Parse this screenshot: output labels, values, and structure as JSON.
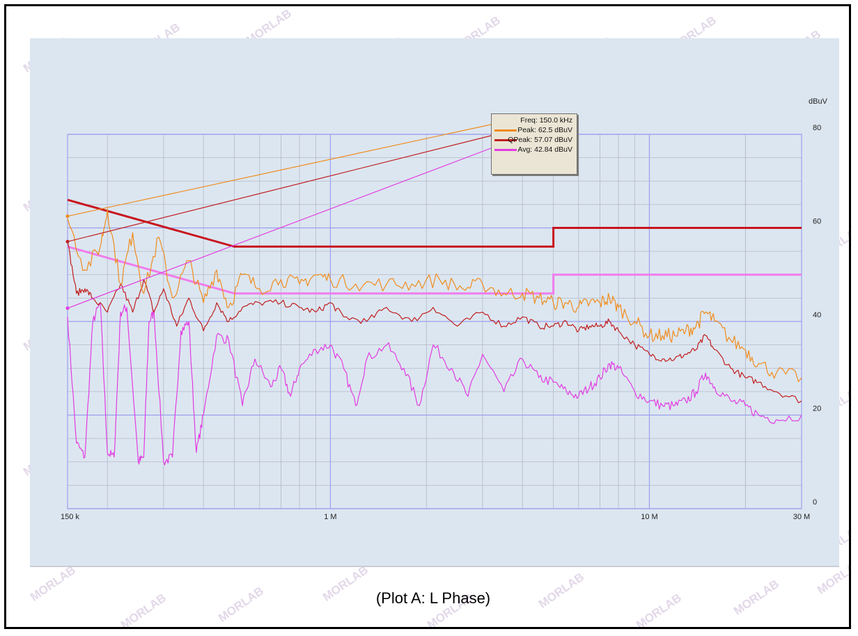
{
  "caption": "(Plot A: L Phase)",
  "watermark": "MORLAB",
  "colors": {
    "peak": "#f08c1e",
    "qpeak": "#c01e1e",
    "avg": "#e23ce2",
    "limit_qpeak": "#c8141e",
    "limit_avg": "#f07cec",
    "grid_major": "#9aa0ee",
    "grid_minor": "#b4b8c8",
    "plot_bg": "#dce6f0"
  },
  "legend": {
    "freq": "Freq: 150.0 kHz",
    "items": [
      {
        "text": "Peak: 62.5 dBuV",
        "color": "#f08c1e"
      },
      {
        "text": "QPeak: 57.07 dBuV",
        "color": "#c01e1e"
      },
      {
        "text": "Avg: 42.84 dBuV",
        "color": "#e23ce2"
      }
    ]
  },
  "chart_data": {
    "type": "line",
    "x_scale": "log",
    "xlim_mhz": [
      0.15,
      30
    ],
    "ylim": [
      0,
      80
    ],
    "ylabel": "dBuV",
    "x_ticks": [
      {
        "value": 0.15,
        "label": "150 k"
      },
      {
        "value": 1,
        "label": "1 M"
      },
      {
        "value": 10,
        "label": "10 M"
      },
      {
        "value": 30,
        "label": "30 M"
      }
    ],
    "y_ticks": [
      {
        "value": 0,
        "label": "0"
      },
      {
        "value": 20,
        "label": "20"
      },
      {
        "value": 40,
        "label": "40"
      },
      {
        "value": 60,
        "label": "60"
      },
      {
        "value": 80,
        "label": "80"
      }
    ],
    "legend_position": "top-right",
    "limits": [
      {
        "name": "QPeak limit",
        "points": [
          [
            0.15,
            66
          ],
          [
            0.5,
            56
          ],
          [
            5,
            56
          ],
          [
            5,
            60
          ],
          [
            30,
            60
          ]
        ]
      },
      {
        "name": "Avg limit",
        "points": [
          [
            0.15,
            56
          ],
          [
            0.5,
            46
          ],
          [
            5,
            46
          ],
          [
            5,
            50
          ],
          [
            30,
            50
          ]
        ]
      }
    ],
    "series": [
      {
        "key": "peak",
        "points": [
          [
            0.15,
            62
          ],
          [
            0.17,
            51
          ],
          [
            0.19,
            56
          ],
          [
            0.2,
            64
          ],
          [
            0.22,
            48
          ],
          [
            0.24,
            59
          ],
          [
            0.26,
            46
          ],
          [
            0.29,
            58
          ],
          [
            0.32,
            45
          ],
          [
            0.36,
            53
          ],
          [
            0.4,
            44
          ],
          [
            0.44,
            51
          ],
          [
            0.48,
            43
          ],
          [
            0.53,
            50
          ],
          [
            0.6,
            47
          ],
          [
            0.7,
            49
          ],
          [
            0.8,
            48
          ],
          [
            0.9,
            50
          ],
          [
            1.0,
            49
          ],
          [
            1.2,
            48
          ],
          [
            1.5,
            48
          ],
          [
            1.8,
            48
          ],
          [
            2.2,
            49
          ],
          [
            2.6,
            47
          ],
          [
            3.0,
            48
          ],
          [
            3.5,
            46
          ],
          [
            4.0,
            46
          ],
          [
            4.5,
            45
          ],
          [
            5.0,
            44
          ],
          [
            5.5,
            44
          ],
          [
            6.0,
            43
          ],
          [
            6.5,
            44
          ],
          [
            7.0,
            44
          ],
          [
            7.5,
            45
          ],
          [
            8.0,
            43
          ],
          [
            9.0,
            40
          ],
          [
            10.0,
            37
          ],
          [
            11.0,
            37
          ],
          [
            12.0,
            37
          ],
          [
            13.0,
            38
          ],
          [
            14.0,
            39
          ],
          [
            15.0,
            42
          ],
          [
            16.0,
            40
          ],
          [
            18.0,
            36
          ],
          [
            20.0,
            34
          ],
          [
            22.0,
            31
          ],
          [
            25.0,
            29
          ],
          [
            30.0,
            28
          ]
        ]
      },
      {
        "key": "qpeak",
        "points": [
          [
            0.15,
            57
          ],
          [
            0.16,
            46
          ],
          [
            0.17,
            47
          ],
          [
            0.18,
            45
          ],
          [
            0.2,
            42
          ],
          [
            0.22,
            48
          ],
          [
            0.24,
            42
          ],
          [
            0.26,
            49
          ],
          [
            0.28,
            42
          ],
          [
            0.3,
            47
          ],
          [
            0.33,
            39
          ],
          [
            0.36,
            45
          ],
          [
            0.4,
            38
          ],
          [
            0.44,
            44
          ],
          [
            0.48,
            40
          ],
          [
            0.53,
            43
          ],
          [
            0.6,
            44
          ],
          [
            0.7,
            44
          ],
          [
            0.8,
            43
          ],
          [
            0.9,
            42
          ],
          [
            1.0,
            44
          ],
          [
            1.1,
            41
          ],
          [
            1.3,
            40
          ],
          [
            1.5,
            43
          ],
          [
            1.8,
            40
          ],
          [
            2.1,
            43
          ],
          [
            2.5,
            39
          ],
          [
            3.0,
            42
          ],
          [
            3.5,
            39
          ],
          [
            4.0,
            41
          ],
          [
            4.5,
            39
          ],
          [
            5.0,
            39
          ],
          [
            5.5,
            40
          ],
          [
            6.0,
            38
          ],
          [
            6.5,
            39
          ],
          [
            7.0,
            39
          ],
          [
            7.5,
            40
          ],
          [
            8.0,
            38
          ],
          [
            9.0,
            35
          ],
          [
            10.0,
            33
          ],
          [
            11.0,
            32
          ],
          [
            12.0,
            32
          ],
          [
            13.0,
            33
          ],
          [
            14.0,
            34
          ],
          [
            15.0,
            37
          ],
          [
            16.0,
            34
          ],
          [
            18.0,
            30
          ],
          [
            20.0,
            28
          ],
          [
            22.0,
            27
          ],
          [
            25.0,
            25
          ],
          [
            30.0,
            23
          ]
        ]
      },
      {
        "key": "avg",
        "points": [
          [
            0.15,
            41
          ],
          [
            0.16,
            14
          ],
          [
            0.17,
            11
          ],
          [
            0.18,
            40
          ],
          [
            0.19,
            44
          ],
          [
            0.2,
            12
          ],
          [
            0.21,
            11
          ],
          [
            0.22,
            42
          ],
          [
            0.23,
            43
          ],
          [
            0.25,
            10
          ],
          [
            0.26,
            11
          ],
          [
            0.27,
            40
          ],
          [
            0.28,
            42
          ],
          [
            0.3,
            10
          ],
          [
            0.32,
            11
          ],
          [
            0.34,
            38
          ],
          [
            0.36,
            40
          ],
          [
            0.38,
            12
          ],
          [
            0.4,
            20
          ],
          [
            0.44,
            37
          ],
          [
            0.48,
            36
          ],
          [
            0.53,
            22
          ],
          [
            0.58,
            32
          ],
          [
            0.65,
            26
          ],
          [
            0.7,
            30
          ],
          [
            0.75,
            24
          ],
          [
            0.8,
            30
          ],
          [
            0.9,
            34
          ],
          [
            1.0,
            35
          ],
          [
            1.1,
            30
          ],
          [
            1.2,
            22
          ],
          [
            1.3,
            32
          ],
          [
            1.5,
            35
          ],
          [
            1.7,
            30
          ],
          [
            1.9,
            22
          ],
          [
            2.1,
            35
          ],
          [
            2.4,
            30
          ],
          [
            2.7,
            24
          ],
          [
            3.0,
            33
          ],
          [
            3.5,
            25
          ],
          [
            4.0,
            32
          ],
          [
            4.5,
            28
          ],
          [
            5.0,
            27
          ],
          [
            5.5,
            25
          ],
          [
            6.0,
            24
          ],
          [
            6.5,
            26
          ],
          [
            7.0,
            28
          ],
          [
            7.5,
            31
          ],
          [
            8.0,
            30
          ],
          [
            9.0,
            25
          ],
          [
            10.0,
            23
          ],
          [
            11.0,
            22
          ],
          [
            12.0,
            22
          ],
          [
            13.0,
            23
          ],
          [
            14.0,
            25
          ],
          [
            15.0,
            29
          ],
          [
            16.0,
            26
          ],
          [
            18.0,
            23
          ],
          [
            20.0,
            22
          ],
          [
            22.0,
            20
          ],
          [
            25.0,
            19
          ],
          [
            30.0,
            20
          ]
        ]
      }
    ],
    "markers": [
      {
        "key": "peak",
        "x": 0.15,
        "y": 62.5
      },
      {
        "key": "qpeak",
        "x": 0.15,
        "y": 57.07
      },
      {
        "key": "avg",
        "x": 0.15,
        "y": 42.84
      }
    ]
  }
}
